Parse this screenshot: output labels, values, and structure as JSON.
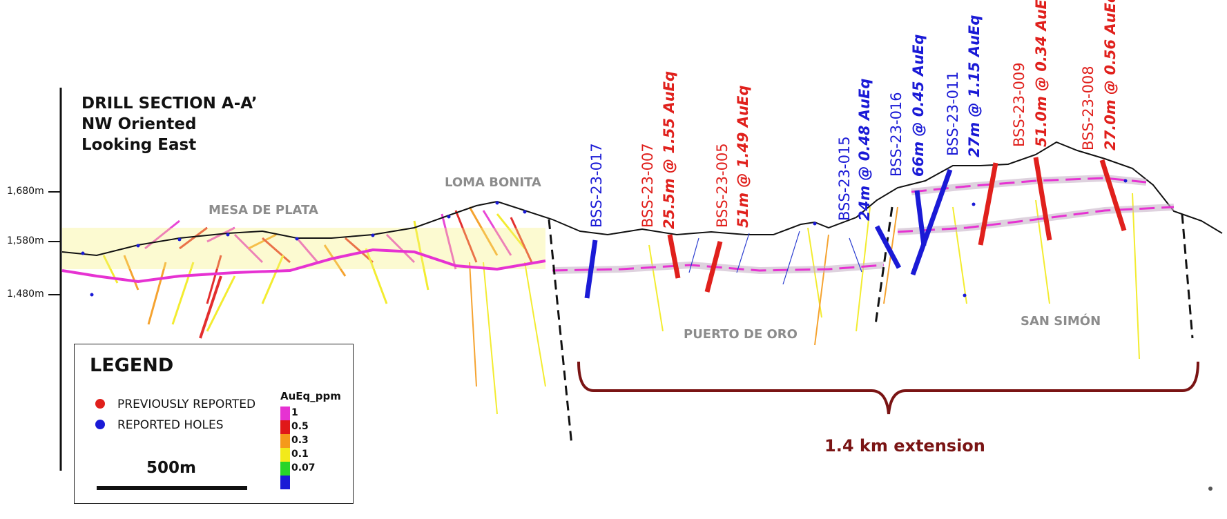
{
  "title": {
    "line1": "DRILL SECTION A-A’",
    "line2": "NW Oriented",
    "line3": "Looking East"
  },
  "elevations": [
    "1,680m",
    "1,580m",
    "1,480m"
  ],
  "zones": {
    "mesa_de_plata": "MESA DE PLATA",
    "loma_bonita": "LOMA BONITA",
    "puerto_de_oro": "PUERTO DE ORO",
    "san_simon": "SAN SIMÓN"
  },
  "holes": [
    {
      "id": "BSS-23-017",
      "interval": "",
      "status": "reported",
      "color": "#1a1ad6"
    },
    {
      "id": "BSS-23-007",
      "interval": "25.5m @ 1.55 AuEq",
      "status": "previous",
      "color": "#e0201c"
    },
    {
      "id": "BSS-23-005",
      "interval": "51m @ 1.49 AuEq",
      "status": "previous",
      "color": "#e0201c"
    },
    {
      "id": "BSS-23-015",
      "interval": "24m @ 0.48 AuEq",
      "status": "reported",
      "color": "#1a1ad6"
    },
    {
      "id": "BSS-23-016",
      "interval": "66m @ 0.45 AuEq",
      "status": "reported",
      "color": "#1a1ad6"
    },
    {
      "id": "BSS-23-011",
      "interval": "27m @ 1.15 AuEq",
      "status": "reported",
      "color": "#1a1ad6"
    },
    {
      "id": "BSS-23-009",
      "interval": "51.0m @ 0.34 AuEq",
      "status": "previous",
      "color": "#e0201c"
    },
    {
      "id": "BSS-23-008",
      "interval": "27.0m @ 0.56 AuEq",
      "status": "previous",
      "color": "#e0201c"
    }
  ],
  "legend": {
    "title": "LEGEND",
    "previous": "PREVIOUSLY REPORTED",
    "reported": "REPORTED HOLES",
    "previous_color": "#e0201c",
    "reported_color": "#1a1ad6",
    "scale": "500m",
    "colorscale_title": "AuEq_ppm",
    "colorscale": [
      {
        "label": "1",
        "color": "#e632d2"
      },
      {
        "label": "0.5",
        "color": "#e01818"
      },
      {
        "label": "0.3",
        "color": "#f59a1a"
      },
      {
        "label": "0.1",
        "color": "#f2ea1a"
      },
      {
        "label": "0.07",
        "color": "#28d428"
      },
      {
        "label": "",
        "color": "#1a1ad6"
      }
    ]
  },
  "extension": "1.4 km extension"
}
